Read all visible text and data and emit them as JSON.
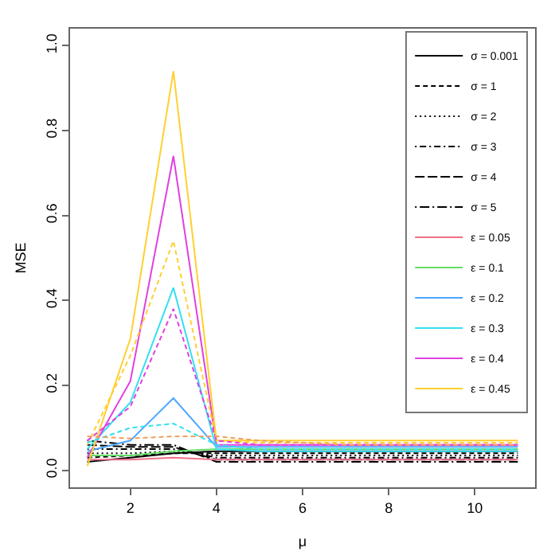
{
  "chart_data": {
    "type": "line",
    "xlabel": "μ",
    "ylabel": "MSE",
    "x": [
      1,
      2,
      3,
      4,
      5,
      6,
      7,
      8,
      9,
      10,
      11
    ],
    "xlim": [
      0.6,
      11.4
    ],
    "xticks": [
      2,
      4,
      6,
      8,
      10
    ],
    "ylim": [
      -0.04,
      1.04
    ],
    "yticks": [
      {
        "value": 0,
        "label": "0.0"
      },
      0.2,
      0.4,
      0.6,
      0.8,
      {
        "value": 1,
        "label": "1.0"
      }
    ],
    "grid": false,
    "legend": "top right",
    "marker": "none",
    "series": [
      {
        "name": "σ = 0.001",
        "color": "#000000",
        "line_style": "solid",
        "values": [
          0.02,
          0.03,
          0.04,
          0.045,
          0.045,
          0.045,
          0.045,
          0.045,
          0.045,
          0.045,
          0.045
        ]
      },
      {
        "name": "σ = 1",
        "color": "#000000",
        "line_style": "dashed",
        "values": [
          0.03,
          0.035,
          0.04,
          0.04,
          0.04,
          0.04,
          0.04,
          0.04,
          0.04,
          0.04,
          0.04
        ]
      },
      {
        "name": "σ = 2",
        "color": "#000000",
        "line_style": "dotted",
        "values": [
          0.04,
          0.04,
          0.045,
          0.035,
          0.035,
          0.035,
          0.035,
          0.035,
          0.035,
          0.035,
          0.035
        ]
      },
      {
        "name": "σ = 3",
        "color": "#000000",
        "line_style": "dashdot",
        "values": [
          0.05,
          0.05,
          0.05,
          0.03,
          0.03,
          0.03,
          0.03,
          0.03,
          0.03,
          0.03,
          0.03
        ]
      },
      {
        "name": "σ = 4",
        "color": "#000000",
        "line_style": "longdash",
        "values": [
          0.06,
          0.055,
          0.055,
          0.025,
          0.025,
          0.025,
          0.025,
          0.025,
          0.025,
          0.025,
          0.025
        ]
      },
      {
        "name": "σ = 5",
        "color": "#000000",
        "line_style": "longdashdot",
        "values": [
          0.07,
          0.06,
          0.06,
          0.02,
          0.02,
          0.02,
          0.02,
          0.02,
          0.02,
          0.02,
          0.02
        ]
      },
      {
        "name": "ε = 0.05",
        "color": "#f0708a",
        "line_style": "solid",
        "values": [
          0.025,
          0.025,
          0.03,
          0.025,
          0.025,
          0.025,
          0.025,
          0.025,
          0.025,
          0.025,
          0.025
        ]
      },
      {
        "name": "ε = 0.1",
        "color": "#66dd66",
        "line_style": "solid",
        "values": [
          0.035,
          0.035,
          0.045,
          0.05,
          0.05,
          0.05,
          0.05,
          0.05,
          0.05,
          0.05,
          0.05
        ]
      },
      {
        "name": "ε = 0.2",
        "color": "#4da6ff",
        "line_style": "solid",
        "values": [
          0.045,
          0.07,
          0.17,
          0.055,
          0.055,
          0.055,
          0.055,
          0.055,
          0.055,
          0.055,
          0.055
        ]
      },
      {
        "name": "ε = 0.3",
        "color": "#33e0f0",
        "line_style": "solid",
        "values": [
          0.05,
          0.16,
          0.43,
          0.05,
          0.045,
          0.045,
          0.045,
          0.045,
          0.045,
          0.045,
          0.045
        ]
      },
      {
        "name": "ε = 0.4",
        "color": "#e040e0",
        "line_style": "solid",
        "values": [
          0.03,
          0.21,
          0.74,
          0.06,
          0.06,
          0.06,
          0.06,
          0.06,
          0.06,
          0.06,
          0.06
        ]
      },
      {
        "name": "ε = 0.45",
        "color": "#ffd030",
        "line_style": "solid",
        "values": [
          0.01,
          0.31,
          0.94,
          0.07,
          0.07,
          0.07,
          0.07,
          0.07,
          0.07,
          0.07,
          0.07
        ]
      },
      {
        "color": "#ffd030",
        "line_style": "dashed",
        "values": [
          0.06,
          0.27,
          0.54,
          0.07,
          0.065,
          0.065,
          0.065,
          0.065,
          0.065,
          0.065,
          0.065
        ]
      },
      {
        "color": "#e040e0",
        "line_style": "dashed",
        "values": [
          0.07,
          0.15,
          0.38,
          0.07,
          0.06,
          0.06,
          0.06,
          0.06,
          0.06,
          0.06,
          0.06
        ]
      },
      {
        "color": "#33e0f0",
        "line_style": "dashed",
        "values": [
          0.065,
          0.1,
          0.11,
          0.06,
          0.05,
          0.05,
          0.05,
          0.05,
          0.05,
          0.05,
          0.05
        ]
      },
      {
        "color": "#f0a060",
        "line_style": "dashed",
        "values": [
          0.08,
          0.075,
          0.08,
          0.08,
          0.07,
          0.065,
          0.06,
          0.06,
          0.06,
          0.06,
          0.06
        ]
      }
    ]
  }
}
